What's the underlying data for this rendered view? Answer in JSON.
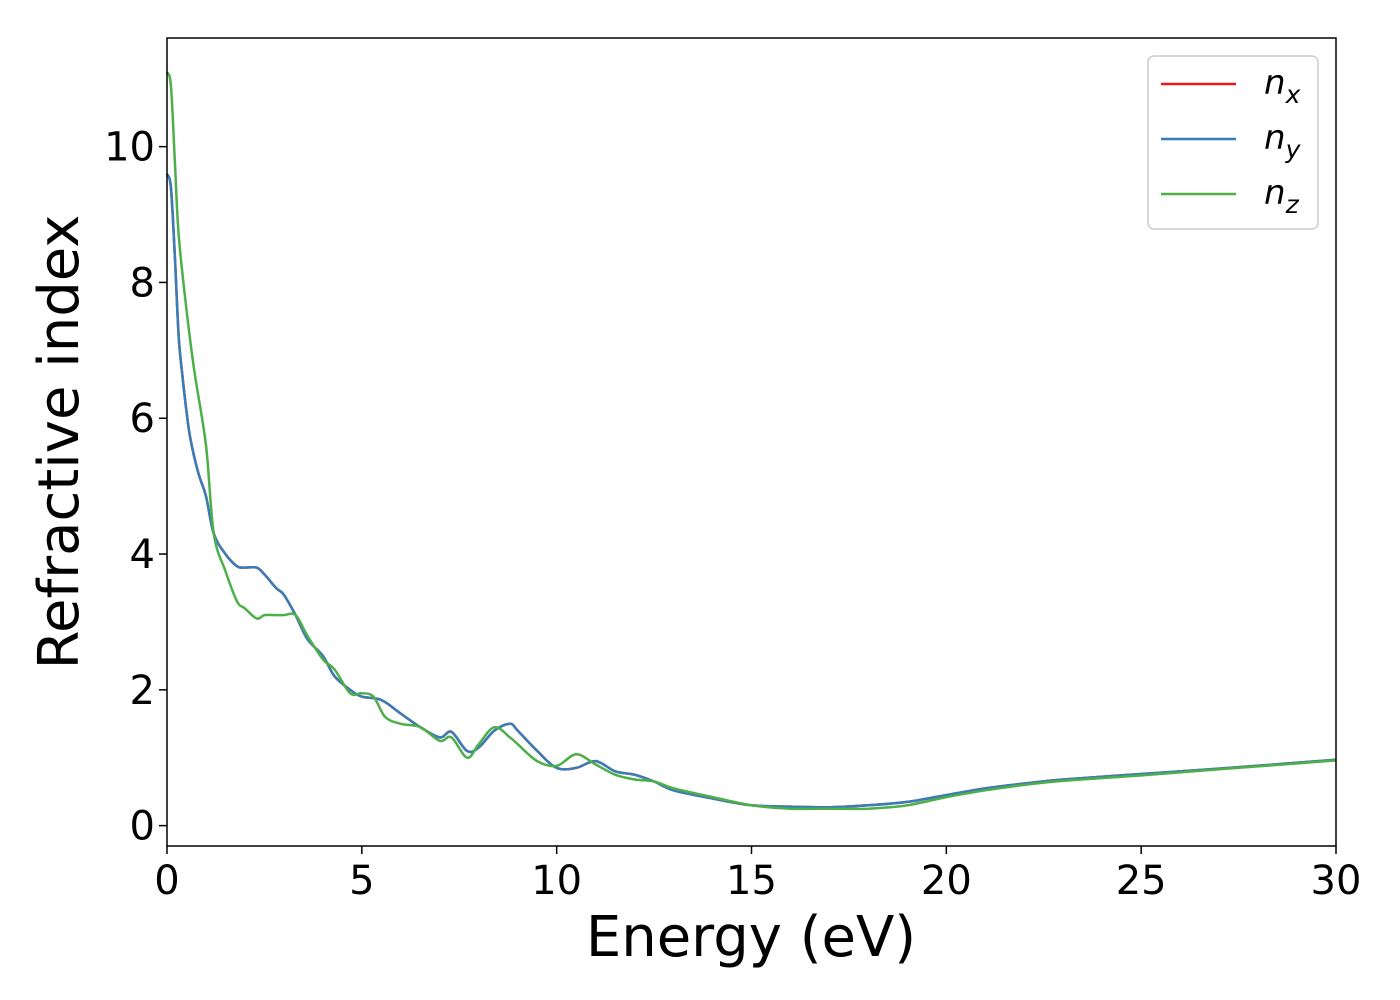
{
  "chart_data": {
    "type": "line",
    "title": "",
    "xlabel": "Energy (eV)",
    "ylabel": "Refractive index",
    "xlim": [
      0,
      30
    ],
    "ylim": [
      -0.3,
      11.6
    ],
    "xticks": [
      0,
      5,
      10,
      15,
      20,
      25,
      30
    ],
    "yticks": [
      0,
      2,
      4,
      6,
      8,
      10
    ],
    "xtick_labels": [
      "0",
      "5",
      "10",
      "15",
      "20",
      "25",
      "30"
    ],
    "ytick_labels": [
      "0",
      "2",
      "4",
      "6",
      "8",
      "10"
    ],
    "grid": false,
    "legend_position": "top-right",
    "series": [
      {
        "name": "n_x",
        "legend_main": "n",
        "legend_sub": "x",
        "color": "#e41a1c",
        "x": [
          0,
          0.1,
          0.2,
          0.3,
          0.4,
          0.5,
          0.6,
          0.8,
          1.0,
          1.2,
          1.5,
          1.8,
          2.0,
          2.3,
          2.5,
          2.8,
          3.0,
          3.3,
          3.6,
          4.0,
          4.3,
          4.7,
          5.0,
          5.5,
          6.0,
          6.5,
          7.0,
          7.3,
          7.7,
          8.0,
          8.4,
          8.8,
          9.0,
          9.5,
          10.0,
          10.5,
          11.0,
          11.5,
          12.0,
          12.5,
          13.0,
          14.0,
          15.0,
          16.0,
          17.0,
          18.0,
          19.0,
          20.0,
          21.0,
          22.0,
          23.0,
          25.0,
          27.0,
          30.0
        ],
        "y": [
          9.6,
          9.4,
          8.4,
          7.2,
          6.6,
          6.1,
          5.7,
          5.2,
          4.85,
          4.3,
          4.0,
          3.82,
          3.8,
          3.8,
          3.7,
          3.5,
          3.4,
          3.1,
          2.75,
          2.5,
          2.2,
          2.0,
          1.9,
          1.85,
          1.65,
          1.45,
          1.3,
          1.38,
          1.1,
          1.15,
          1.4,
          1.5,
          1.4,
          1.1,
          0.85,
          0.85,
          0.95,
          0.8,
          0.75,
          0.65,
          0.52,
          0.4,
          0.3,
          0.28,
          0.27,
          0.3,
          0.35,
          0.45,
          0.55,
          0.62,
          0.68,
          0.76,
          0.84,
          0.97
        ]
      },
      {
        "name": "n_y",
        "legend_main": "n",
        "legend_sub": "y",
        "color": "#377eb8",
        "x": [
          0,
          0.1,
          0.2,
          0.3,
          0.4,
          0.5,
          0.6,
          0.8,
          1.0,
          1.2,
          1.5,
          1.8,
          2.0,
          2.3,
          2.5,
          2.8,
          3.0,
          3.3,
          3.6,
          4.0,
          4.3,
          4.7,
          5.0,
          5.5,
          6.0,
          6.5,
          7.0,
          7.3,
          7.7,
          8.0,
          8.4,
          8.8,
          9.0,
          9.5,
          10.0,
          10.5,
          11.0,
          11.5,
          12.0,
          12.5,
          13.0,
          14.0,
          15.0,
          16.0,
          17.0,
          18.0,
          19.0,
          20.0,
          21.0,
          22.0,
          23.0,
          25.0,
          27.0,
          30.0
        ],
        "y": [
          9.6,
          9.4,
          8.4,
          7.2,
          6.6,
          6.1,
          5.7,
          5.2,
          4.85,
          4.3,
          4.0,
          3.82,
          3.8,
          3.8,
          3.7,
          3.5,
          3.4,
          3.1,
          2.75,
          2.5,
          2.2,
          2.0,
          1.9,
          1.85,
          1.65,
          1.45,
          1.3,
          1.38,
          1.1,
          1.15,
          1.4,
          1.5,
          1.4,
          1.1,
          0.85,
          0.85,
          0.95,
          0.8,
          0.75,
          0.65,
          0.52,
          0.4,
          0.3,
          0.28,
          0.27,
          0.3,
          0.35,
          0.45,
          0.55,
          0.62,
          0.68,
          0.76,
          0.84,
          0.97
        ]
      },
      {
        "name": "n_z",
        "legend_main": "n",
        "legend_sub": "z",
        "color": "#4daf4a",
        "x": [
          0,
          0.1,
          0.2,
          0.3,
          0.5,
          0.7,
          1.0,
          1.2,
          1.5,
          1.8,
          2.0,
          2.3,
          2.5,
          2.8,
          3.0,
          3.3,
          3.6,
          4.0,
          4.3,
          4.7,
          5.0,
          5.3,
          5.6,
          6.0,
          6.5,
          7.0,
          7.3,
          7.7,
          8.0,
          8.4,
          8.8,
          9.0,
          9.5,
          10.0,
          10.5,
          11.0,
          11.5,
          12.0,
          12.5,
          13.0,
          14.0,
          15.0,
          16.0,
          17.0,
          18.0,
          19.0,
          20.0,
          21.0,
          22.0,
          23.0,
          25.0,
          27.0,
          30.0
        ],
        "y": [
          11.1,
          10.9,
          9.8,
          8.7,
          7.6,
          6.7,
          5.6,
          4.3,
          3.75,
          3.3,
          3.2,
          3.05,
          3.1,
          3.1,
          3.1,
          3.1,
          2.8,
          2.45,
          2.3,
          1.95,
          1.95,
          1.9,
          1.6,
          1.5,
          1.45,
          1.25,
          1.3,
          1.0,
          1.2,
          1.45,
          1.3,
          1.2,
          0.95,
          0.88,
          1.05,
          0.9,
          0.75,
          0.68,
          0.65,
          0.55,
          0.42,
          0.3,
          0.25,
          0.25,
          0.25,
          0.3,
          0.42,
          0.52,
          0.6,
          0.66,
          0.74,
          0.83,
          0.96
        ]
      }
    ]
  }
}
